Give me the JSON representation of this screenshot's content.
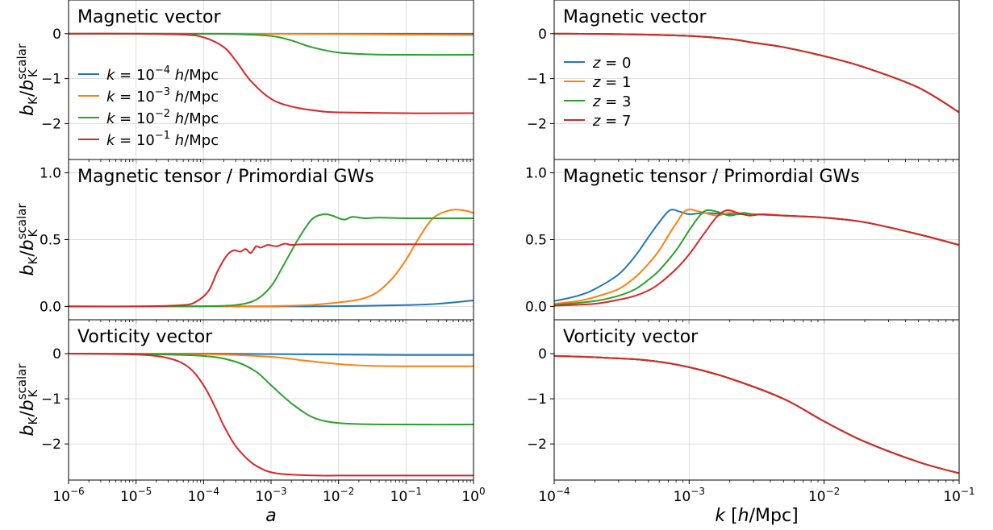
{
  "colors": {
    "blue": "#1f77b4",
    "orange": "#ff7f0e",
    "green": "#2ca02c",
    "red": "#d62728",
    "grid": "#d9d9d9"
  },
  "chart_data": [
    {
      "type": "line",
      "title": "Magnetic vector",
      "xscale": "log",
      "xlim": [
        1e-06,
        1
      ],
      "ylim": [
        -2.8,
        0.75
      ],
      "yticks": [
        0,
        -1,
        -2
      ],
      "ytick_labels": [
        "0",
        "−1",
        "−2"
      ],
      "ylabel": "b_K / b_K^scalar",
      "grid": true,
      "legend": "left",
      "series": [
        {
          "name": "k = 10^-4 h/Mpc",
          "color": "blue",
          "x": [
            1e-06,
            1e-05,
            0.0001,
            0.001,
            0.01,
            0.1,
            1
          ],
          "y": [
            0,
            0,
            0,
            0,
            0,
            0,
            0
          ]
        },
        {
          "name": "k = 10^-3 h/Mpc",
          "color": "orange",
          "x": [
            1e-06,
            1e-05,
            0.0001,
            0.001,
            0.01,
            0.1,
            1
          ],
          "y": [
            0,
            0,
            0,
            -0.003,
            -0.01,
            -0.02,
            -0.03
          ]
        },
        {
          "name": "k = 10^-2 h/Mpc",
          "color": "green",
          "x": [
            1e-06,
            1e-05,
            0.0001,
            0.0003,
            0.001,
            0.002,
            0.004,
            0.01,
            0.03,
            0.1,
            1
          ],
          "y": [
            0,
            0,
            -0.003,
            -0.01,
            -0.05,
            -0.15,
            -0.3,
            -0.42,
            -0.46,
            -0.47,
            -0.47
          ]
        },
        {
          "name": "k = 10^-1 h/Mpc",
          "color": "red",
          "x": [
            1e-06,
            1e-05,
            5e-05,
            0.0001,
            0.0002,
            0.0003,
            0.0005,
            0.001,
            0.002,
            0.005,
            0.01,
            0.1,
            1
          ],
          "y": [
            0,
            0,
            -0.02,
            -0.08,
            -0.3,
            -0.6,
            -1.05,
            -1.45,
            -1.62,
            -1.72,
            -1.75,
            -1.77,
            -1.77
          ]
        }
      ]
    },
    {
      "type": "line",
      "title": "Magnetic tensor / Primordial GWs",
      "xscale": "log",
      "xlim": [
        1e-06,
        1
      ],
      "ylim": [
        -0.1,
        1.1
      ],
      "yticks": [
        0,
        0.5,
        1.0
      ],
      "ytick_labels": [
        "0.0",
        "0.5",
        "1.0"
      ],
      "ylabel": "b_K / b_K^scalar",
      "grid": true,
      "series": [
        {
          "color": "blue",
          "x": [
            1e-06,
            0.001,
            0.01,
            0.1,
            0.3,
            1
          ],
          "y": [
            0,
            0,
            0.002,
            0.01,
            0.02,
            0.045
          ]
        },
        {
          "color": "orange",
          "x": [
            1e-06,
            0.001,
            0.01,
            0.03,
            0.06,
            0.1,
            0.15,
            0.25,
            0.45,
            0.7,
            1
          ],
          "y": [
            0,
            0.002,
            0.03,
            0.08,
            0.2,
            0.35,
            0.5,
            0.66,
            0.72,
            0.72,
            0.7
          ]
        },
        {
          "color": "green",
          "x": [
            1e-06,
            1e-05,
            0.0001,
            0.0003,
            0.0006,
            0.001,
            0.0015,
            0.0025,
            0.004,
            0.006,
            0.008,
            0.012,
            0.016,
            0.025,
            0.04,
            0.1,
            1
          ],
          "y": [
            0,
            0,
            0.002,
            0.01,
            0.05,
            0.15,
            0.3,
            0.5,
            0.65,
            0.69,
            0.68,
            0.65,
            0.67,
            0.66,
            0.665,
            0.66,
            0.66
          ]
        },
        {
          "color": "red",
          "x": [
            1e-06,
            1e-05,
            5e-05,
            8e-05,
            0.00012,
            0.00016,
            0.00022,
            0.00028,
            0.00035,
            0.00042,
            0.0005,
            0.0006,
            0.0007,
            0.0009,
            0.0012,
            0.0016,
            0.002,
            0.003,
            0.01,
            1
          ],
          "y": [
            0,
            0,
            0.01,
            0.04,
            0.12,
            0.26,
            0.38,
            0.42,
            0.41,
            0.43,
            0.4,
            0.45,
            0.44,
            0.46,
            0.45,
            0.47,
            0.46,
            0.465,
            0.465,
            0.465
          ]
        }
      ]
    },
    {
      "type": "line",
      "title": "Vorticity vector",
      "xscale": "log",
      "xlim": [
        1e-06,
        1
      ],
      "ylim": [
        -2.8,
        0.75
      ],
      "yticks": [
        0,
        -1,
        -2
      ],
      "ytick_labels": [
        "0",
        "−1",
        "−2"
      ],
      "xticks": [
        1e-06,
        1e-05,
        0.0001,
        0.001,
        0.01,
        0.1,
        1
      ],
      "xtick_labels": [
        [
          "10",
          "−6"
        ],
        [
          "10",
          "−5"
        ],
        [
          "10",
          "−4"
        ],
        [
          "10",
          "−3"
        ],
        [
          "10",
          "−2"
        ],
        [
          "10",
          "−1"
        ],
        [
          "10",
          "0"
        ]
      ],
      "xlabel": "a",
      "ylabel": "b_K / b_K^scalar",
      "grid": true,
      "series": [
        {
          "color": "blue",
          "x": [
            1e-06,
            0.0001,
            0.001,
            0.01,
            0.1,
            1
          ],
          "y": [
            0,
            0,
            -0.01,
            -0.02,
            -0.03,
            -0.03
          ]
        },
        {
          "color": "orange",
          "x": [
            1e-06,
            0.0001,
            0.001,
            0.003,
            0.01,
            0.03,
            0.1,
            1
          ],
          "y": [
            0,
            -0.01,
            -0.07,
            -0.15,
            -0.23,
            -0.27,
            -0.28,
            -0.28
          ]
        },
        {
          "color": "green",
          "x": [
            1e-06,
            1e-05,
            0.0001,
            0.0003,
            0.0006,
            0.001,
            0.002,
            0.004,
            0.008,
            0.02,
            0.1,
            1
          ],
          "y": [
            0,
            -0.01,
            -0.05,
            -0.18,
            -0.4,
            -0.7,
            -1.1,
            -1.4,
            -1.52,
            -1.56,
            -1.57,
            -1.57
          ]
        },
        {
          "color": "red",
          "x": [
            1e-06,
            1e-05,
            3e-05,
            6e-05,
            0.0001,
            0.00015,
            0.0002,
            0.0003,
            0.0005,
            0.0008,
            0.0012,
            0.002,
            0.005,
            0.01,
            0.1,
            1
          ],
          "y": [
            0,
            -0.02,
            -0.1,
            -0.3,
            -0.7,
            -1.2,
            -1.6,
            -2.05,
            -2.4,
            -2.58,
            -2.65,
            -2.68,
            -2.7,
            -2.7,
            -2.7,
            -2.7
          ]
        }
      ]
    },
    {
      "type": "line",
      "title": "Magnetic vector",
      "xscale": "log",
      "xlim": [
        0.0001,
        0.1
      ],
      "ylim": [
        -2.8,
        0.75
      ],
      "yticks": [
        0,
        -1,
        -2
      ],
      "ytick_labels": [
        "0",
        "−1",
        "−2"
      ],
      "grid": true,
      "legend": "left",
      "series": [
        {
          "name": "z = 0",
          "color": "blue",
          "x": [
            0.0001,
            0.0003,
            0.001,
            0.002,
            0.003,
            0.005,
            0.01,
            0.02,
            0.05,
            0.1
          ],
          "y": [
            0,
            -0.01,
            -0.05,
            -0.12,
            -0.2,
            -0.3,
            -0.5,
            -0.75,
            -1.2,
            -1.75
          ]
        },
        {
          "name": "z = 1",
          "color": "orange",
          "x": [
            0.0001,
            0.0003,
            0.001,
            0.002,
            0.003,
            0.005,
            0.01,
            0.02,
            0.05,
            0.1
          ],
          "y": [
            0,
            -0.01,
            -0.05,
            -0.12,
            -0.2,
            -0.3,
            -0.5,
            -0.75,
            -1.2,
            -1.75
          ]
        },
        {
          "name": "z = 3",
          "color": "green",
          "x": [
            0.0001,
            0.0003,
            0.001,
            0.002,
            0.003,
            0.005,
            0.01,
            0.02,
            0.05,
            0.1
          ],
          "y": [
            0,
            -0.01,
            -0.05,
            -0.12,
            -0.2,
            -0.3,
            -0.5,
            -0.75,
            -1.2,
            -1.75
          ]
        },
        {
          "name": "z = 7",
          "color": "red",
          "x": [
            0.0001,
            0.0003,
            0.001,
            0.002,
            0.003,
            0.005,
            0.01,
            0.02,
            0.05,
            0.1
          ],
          "y": [
            0,
            -0.01,
            -0.05,
            -0.12,
            -0.2,
            -0.3,
            -0.5,
            -0.75,
            -1.2,
            -1.75
          ]
        }
      ]
    },
    {
      "type": "line",
      "title": "Magnetic tensor / Primordial GWs",
      "xscale": "log",
      "xlim": [
        0.0001,
        0.1
      ],
      "ylim": [
        -0.1,
        1.1
      ],
      "yticks": [
        0,
        0.5,
        1.0
      ],
      "ytick_labels": [
        "0.0",
        "0.5",
        "1.0"
      ],
      "grid": true,
      "series": [
        {
          "color": "blue",
          "x": [
            0.0001,
            0.00015,
            0.0002,
            0.0003,
            0.0004,
            0.0005,
            0.0006,
            0.00072,
            0.00085,
            0.001,
            0.0013,
            0.002,
            0.003,
            0.005,
            0.01,
            0.02,
            0.05,
            0.1
          ],
          "y": [
            0.04,
            0.08,
            0.13,
            0.24,
            0.38,
            0.52,
            0.63,
            0.72,
            0.71,
            0.69,
            0.7,
            0.69,
            0.69,
            0.68,
            0.665,
            0.63,
            0.54,
            0.46
          ]
        },
        {
          "color": "orange",
          "x": [
            0.0001,
            0.00015,
            0.0002,
            0.0003,
            0.0004,
            0.0005,
            0.0006,
            0.0007,
            0.0008,
            0.00095,
            0.0012,
            0.0016,
            0.002,
            0.003,
            0.005,
            0.01,
            0.02,
            0.05,
            0.1
          ],
          "y": [
            0.02,
            0.04,
            0.07,
            0.13,
            0.22,
            0.32,
            0.42,
            0.53,
            0.62,
            0.72,
            0.71,
            0.68,
            0.7,
            0.69,
            0.68,
            0.665,
            0.63,
            0.54,
            0.46
          ]
        },
        {
          "color": "green",
          "x": [
            0.0001,
            0.0002,
            0.0003,
            0.0004,
            0.0005,
            0.0006,
            0.0008,
            0.001,
            0.0012,
            0.00135,
            0.0016,
            0.002,
            0.0025,
            0.003,
            0.005,
            0.01,
            0.02,
            0.05,
            0.1
          ],
          "y": [
            0.01,
            0.04,
            0.08,
            0.13,
            0.2,
            0.27,
            0.42,
            0.57,
            0.68,
            0.72,
            0.71,
            0.68,
            0.7,
            0.69,
            0.68,
            0.665,
            0.63,
            0.54,
            0.46
          ]
        },
        {
          "color": "red",
          "x": [
            0.0001,
            0.0002,
            0.0003,
            0.0004,
            0.0005,
            0.0006,
            0.0008,
            0.001,
            0.0013,
            0.0016,
            0.0019,
            0.0023,
            0.0028,
            0.0035,
            0.005,
            0.01,
            0.02,
            0.05,
            0.1
          ],
          "y": [
            0.005,
            0.02,
            0.05,
            0.08,
            0.12,
            0.17,
            0.28,
            0.39,
            0.55,
            0.67,
            0.72,
            0.7,
            0.68,
            0.69,
            0.68,
            0.665,
            0.63,
            0.54,
            0.46
          ]
        }
      ]
    },
    {
      "type": "line",
      "title": "Vorticity vector",
      "xscale": "log",
      "xlim": [
        0.0001,
        0.1
      ],
      "ylim": [
        -2.8,
        0.75
      ],
      "yticks": [
        0,
        -1,
        -2
      ],
      "ytick_labels": [
        "0",
        "−1",
        "−2"
      ],
      "xticks": [
        0.0001,
        0.001,
        0.01,
        0.1
      ],
      "xtick_labels": [
        [
          "10",
          "−4"
        ],
        [
          "10",
          "−3"
        ],
        [
          "10",
          "−2"
        ],
        [
          "10",
          "−1"
        ]
      ],
      "xlabel": "k [h/Mpc]",
      "grid": true,
      "series": [
        {
          "color": "blue",
          "x": [
            0.0001,
            0.0002,
            0.0005,
            0.001,
            0.002,
            0.005,
            0.01,
            0.02,
            0.05,
            0.1
          ],
          "y": [
            -0.05,
            -0.08,
            -0.15,
            -0.3,
            -0.55,
            -1.0,
            -1.5,
            -1.95,
            -2.4,
            -2.65
          ]
        },
        {
          "color": "orange",
          "x": [
            0.0001,
            0.0002,
            0.0005,
            0.001,
            0.002,
            0.005,
            0.01,
            0.02,
            0.05,
            0.1
          ],
          "y": [
            -0.05,
            -0.08,
            -0.15,
            -0.3,
            -0.55,
            -1.0,
            -1.5,
            -1.95,
            -2.4,
            -2.65
          ]
        },
        {
          "color": "green",
          "x": [
            0.0001,
            0.0002,
            0.0005,
            0.001,
            0.002,
            0.005,
            0.01,
            0.02,
            0.05,
            0.1
          ],
          "y": [
            -0.05,
            -0.08,
            -0.15,
            -0.3,
            -0.55,
            -1.0,
            -1.5,
            -1.95,
            -2.4,
            -2.65
          ]
        },
        {
          "color": "red",
          "x": [
            0.0001,
            0.0002,
            0.0005,
            0.001,
            0.002,
            0.005,
            0.01,
            0.02,
            0.05,
            0.1
          ],
          "y": [
            -0.05,
            -0.08,
            -0.15,
            -0.3,
            -0.55,
            -1.0,
            -1.5,
            -1.95,
            -2.4,
            -2.65
          ]
        }
      ]
    }
  ]
}
